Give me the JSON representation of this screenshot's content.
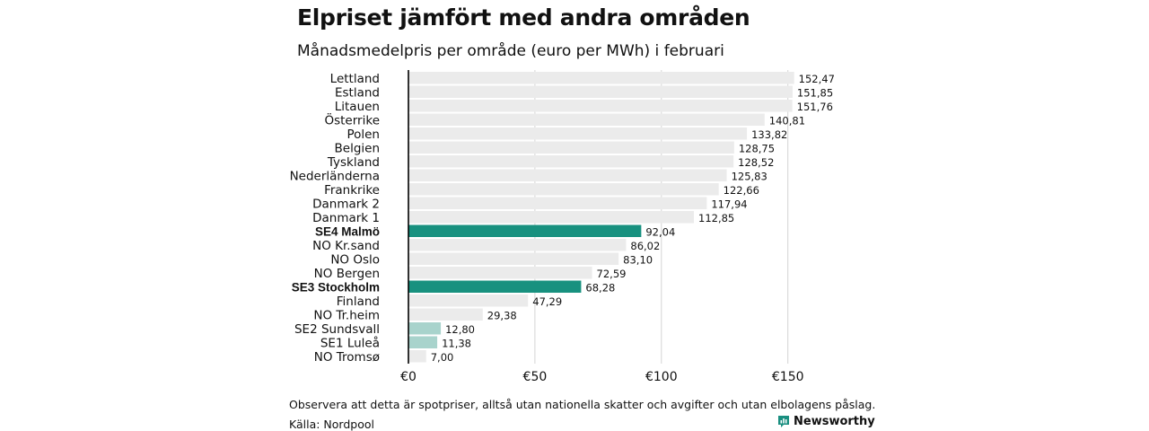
{
  "title": "Elpriset jämfört med andra områden",
  "subtitle": "Månadsmedelpris per område (euro per MWh) i februari",
  "note": "Observera att detta är spotpriser, alltså utan nationella skatter och avgifter och utan elbolagens påslag.",
  "source": "Källa: Nordpool",
  "brand": {
    "name": "Newsworthy",
    "icon": "bar-chart-logo-icon",
    "color": "#1a8f80"
  },
  "colors": {
    "default": "#ebebeb",
    "highlight": "#18917f",
    "light": "#a8d3cc",
    "grid": "#d4d4d4",
    "axis": "#000000"
  },
  "chart_data": {
    "type": "bar",
    "orientation": "horizontal",
    "categories": [
      "Lettland",
      "Estland",
      "Litauen",
      "Österrike",
      "Polen",
      "Belgien",
      "Tyskland",
      "Nederländerna",
      "Frankrike",
      "Danmark  2",
      "Danmark  1",
      "SE4 Malmö",
      "NO Kr.sand",
      "NO Oslo",
      "NO Bergen",
      "SE3 Stockholm",
      "Finland",
      "NO Tr.heim",
      "SE2  Sundsvall",
      "SE1  Luleå",
      "NO Tromsø"
    ],
    "values": [
      152.47,
      151.85,
      151.76,
      140.81,
      133.82,
      128.75,
      128.52,
      125.83,
      122.66,
      117.94,
      112.85,
      92.04,
      86.02,
      83.1,
      72.59,
      68.28,
      47.29,
      29.38,
      12.8,
      11.38,
      7.0
    ],
    "value_labels": [
      "152,47",
      "151,85",
      "151,76",
      "140,81",
      "133,82",
      "128,75",
      "128,52",
      "125,83",
      "122,66",
      "117,94",
      "112,85",
      "92,04",
      "86,02",
      "83,10",
      "72,59",
      "68,28",
      "47,29",
      "29,38",
      "12,80",
      "11,38",
      "7,00"
    ],
    "bar_style": [
      "default",
      "default",
      "default",
      "default",
      "default",
      "default",
      "default",
      "default",
      "default",
      "default",
      "default",
      "highlight",
      "default",
      "default",
      "default",
      "highlight",
      "default",
      "default",
      "light",
      "light",
      "default"
    ],
    "bold_labels": [
      false,
      false,
      false,
      false,
      false,
      false,
      false,
      false,
      false,
      false,
      false,
      true,
      false,
      false,
      false,
      true,
      false,
      false,
      false,
      false,
      false
    ],
    "xlim": [
      0,
      160
    ],
    "xticks": [
      0,
      50,
      100,
      150
    ],
    "xtick_labels": [
      "€0",
      "€50",
      "€100",
      "€150"
    ],
    "grid": true
  }
}
